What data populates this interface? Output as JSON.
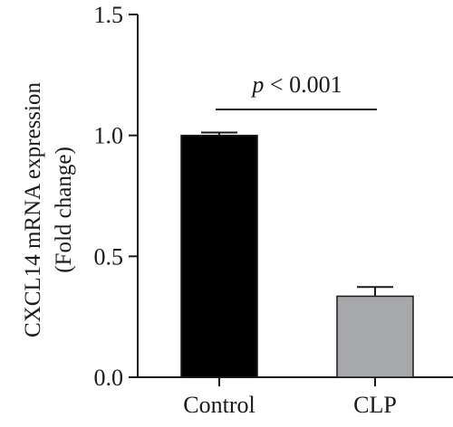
{
  "chart_data": {
    "type": "bar",
    "categories": [
      "Control",
      "CLP"
    ],
    "values": [
      1.0,
      0.335
    ],
    "error_upper": [
      1.012,
      0.373
    ],
    "bar_colors": [
      "#000000",
      "#a6a8ab"
    ],
    "ylabel_lines": [
      "CXCL14 mRNA expression",
      "(Fold change)"
    ],
    "ylim": [
      0,
      1.5
    ],
    "yticks": [
      0.0,
      0.5,
      1.0,
      1.5
    ],
    "ytick_labels": [
      "0.0",
      "0.5",
      "1.0",
      "1.5"
    ],
    "annotation": {
      "p_symbol": "p",
      "p_rest": " < 0.001",
      "spans": [
        "Control",
        "CLP"
      ]
    },
    "grid": false
  }
}
